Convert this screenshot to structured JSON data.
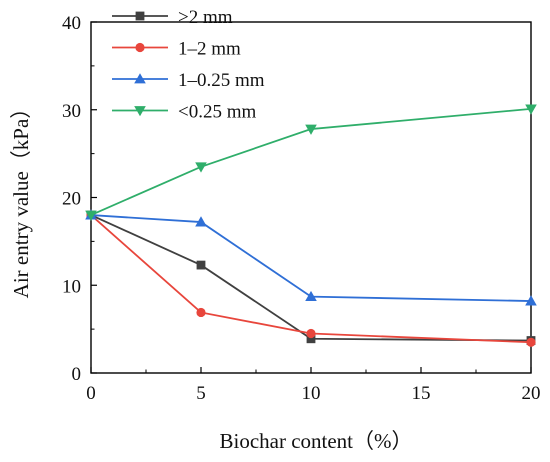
{
  "chart_data": {
    "type": "line",
    "title": "",
    "xlabel": "Biochar content（%）",
    "ylabel": "Air entry value（kPa）",
    "x_positions": [
      0,
      5,
      10,
      20
    ],
    "x_tick_labels": [
      "0",
      "5",
      "10",
      "15",
      "20"
    ],
    "y_ticks": [
      0,
      10,
      20,
      30,
      40
    ],
    "xlim": [
      0,
      20
    ],
    "ylim": [
      0,
      40
    ],
    "grid": false,
    "legend_position": "top-left",
    "series": [
      {
        "name": ">2 mm",
        "color": "#404040",
        "marker": "square",
        "values": [
          18.0,
          12.3,
          3.9,
          3.7
        ]
      },
      {
        "name": "1–2 mm",
        "color": "#e8463c",
        "marker": "circle",
        "values": [
          18.0,
          6.9,
          4.5,
          3.5
        ]
      },
      {
        "name": "1–0.25 mm",
        "color": "#2f6fd6",
        "marker": "triangle-up",
        "values": [
          18.0,
          17.2,
          8.7,
          8.2
        ]
      },
      {
        "name": "<0.25 mm",
        "color": "#2fae6a",
        "marker": "triangle-down",
        "values": [
          18.0,
          23.5,
          27.8,
          30.1
        ]
      }
    ]
  }
}
